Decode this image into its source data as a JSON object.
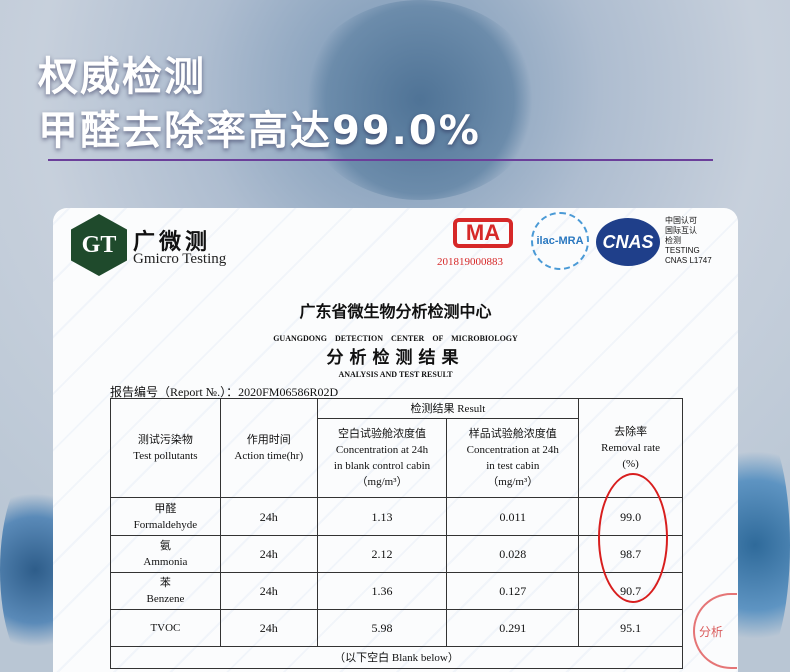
{
  "headline": {
    "line1": "权威检测",
    "line2": "甲醛去除率高达99.0%"
  },
  "report": {
    "logo": {
      "mark": "GT",
      "name_cn": "广微测",
      "name_en": "Gmicro Testing"
    },
    "cert": {
      "cma": "MA",
      "cma_no": "201819000883",
      "ilac": "ilac-MRA",
      "cnas": "CNAS",
      "cnas_text": [
        "中国认可",
        "国际互认",
        "检测",
        "TESTING",
        "CNAS L1747"
      ]
    },
    "title_cn": "广东省微生物分析检测中心",
    "title_en": "GUANGDONG DETECTION CENTER OF MICROBIOLOGY",
    "subtitle_cn": "分析检测结果",
    "subtitle_en": "ANALYSIS AND TEST RESULT",
    "report_no": "报告编号（Report №.）：2020FM06586R02D",
    "table": {
      "h_pollutant": [
        "测试污染物",
        "Test pollutants"
      ],
      "h_time": [
        "作用时间",
        "Action time(hr)"
      ],
      "h_result": "检测结果 Result",
      "h_blank": [
        "空白试验舱浓度值",
        "Concentration at 24h",
        "in blank control cabin",
        "（mg/m³）"
      ],
      "h_test": [
        "样品试验舱浓度值",
        "Concentration at 24h",
        "in test cabin",
        "（mg/m³）"
      ],
      "h_rate": [
        "去除率",
        "Removal rate",
        "(%)"
      ],
      "rows": [
        {
          "cn": "甲醛",
          "en": "Formaldehyde",
          "time": "24h",
          "blank": "1.13",
          "test": "0.011",
          "rate": "99.0"
        },
        {
          "cn": "氨",
          "en": "Ammonia",
          "time": "24h",
          "blank": "2.12",
          "test": "0.028",
          "rate": "98.7"
        },
        {
          "cn": "苯",
          "en": "Benzene",
          "time": "24h",
          "blank": "1.36",
          "test": "0.127",
          "rate": "90.7"
        },
        {
          "cn": "",
          "en": "TVOC",
          "time": "24h",
          "blank": "5.98",
          "test": "0.291",
          "rate": "95.1"
        }
      ],
      "footer": "（以下空白 Blank below）"
    },
    "stamp": "分析"
  },
  "colors": {
    "accent_rule": "#6b3f9a",
    "highlight_circle": "#d81e1e"
  }
}
